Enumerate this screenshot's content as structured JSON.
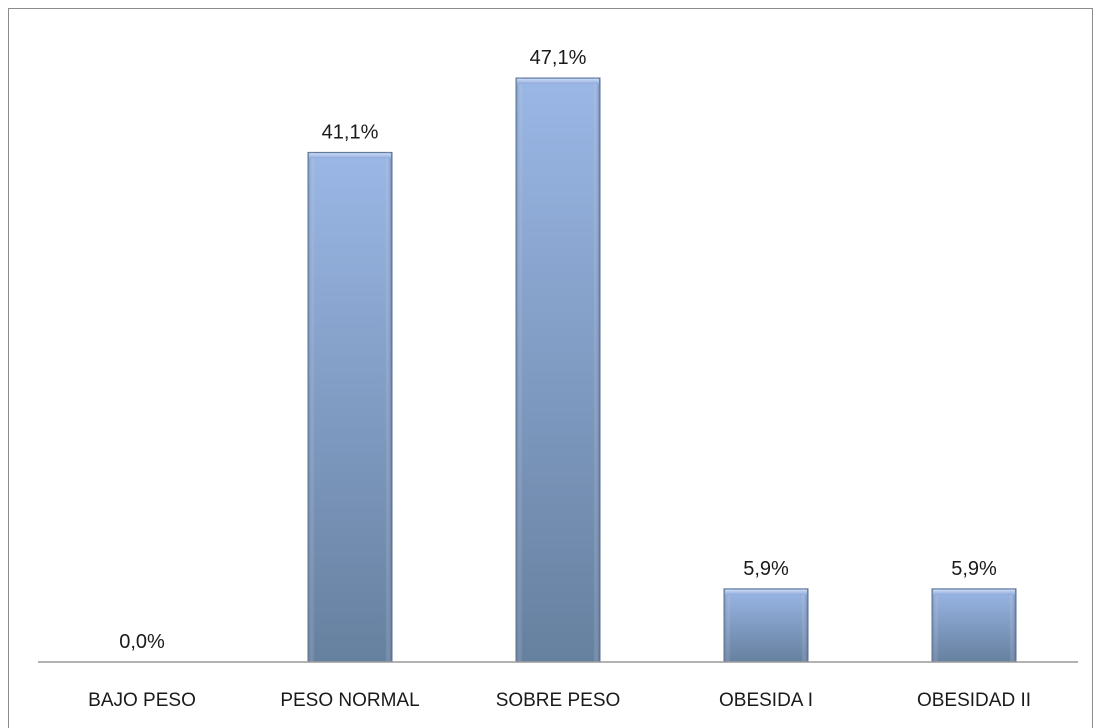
{
  "chart_data": {
    "type": "bar",
    "title": "",
    "xlabel": "",
    "ylabel": "",
    "categories": [
      "BAJO PESO",
      "PESO NORMAL",
      "SOBRE PESO",
      "OBESIDA I",
      "OBESIDAD II"
    ],
    "values": [
      0.0,
      41.1,
      47.1,
      5.9,
      5.9
    ],
    "data_labels": [
      "0,0%",
      "41,1%",
      "47,1%",
      "5,9%",
      "5,9%"
    ],
    "ylim": [
      0,
      47.1
    ],
    "unit": "%",
    "grid": false,
    "legend": "none",
    "colors": {
      "bar_light": "#9ab7e6",
      "bar_mid": "#7f9fd3",
      "bar_dark": "#66809f",
      "axis": "#9a9a9a",
      "label_text": "#1a1a1a"
    }
  }
}
